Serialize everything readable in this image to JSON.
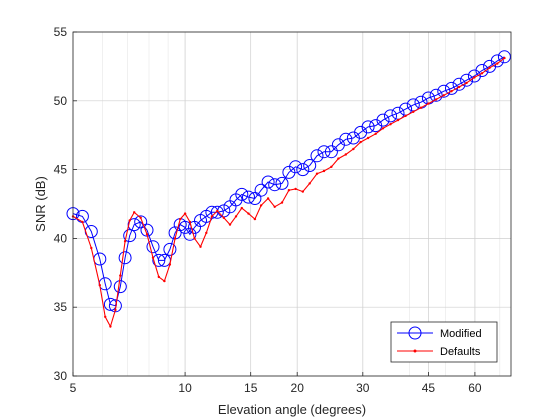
{
  "chart_data": {
    "type": "line",
    "xlabel": "Elevation angle (degrees)",
    "ylabel": "SNR (dB)",
    "x_scale": "log",
    "xlim": [
      5,
      75
    ],
    "ylim": [
      30,
      55
    ],
    "x_ticks": [
      5,
      10,
      15,
      20,
      30,
      45,
      60
    ],
    "y_ticks": [
      30,
      35,
      40,
      45,
      50,
      55
    ],
    "grid": true,
    "legend_position": "bottom-right",
    "series": [
      {
        "name": "Modified",
        "color": "#0000ff",
        "marker": "circle",
        "x": [
          5.0,
          5.3,
          5.6,
          5.9,
          6.1,
          6.3,
          6.5,
          6.7,
          6.9,
          7.1,
          7.3,
          7.6,
          7.9,
          8.2,
          8.5,
          8.8,
          9.1,
          9.4,
          9.7,
          10.0,
          10.3,
          10.6,
          11.0,
          11.4,
          11.8,
          12.2,
          12.7,
          13.2,
          13.7,
          14.2,
          14.8,
          15.4,
          16.0,
          16.7,
          17.4,
          18.2,
          19.0,
          19.8,
          20.7,
          21.6,
          22.6,
          23.6,
          24.7,
          25.8,
          27.0,
          28.3,
          29.6,
          31.0,
          32.5,
          34.0,
          35.6,
          37.3,
          39.1,
          41.0,
          43.0,
          45.0,
          47.2,
          49.5,
          51.9,
          54.4,
          57.0,
          59.8,
          62.7,
          65.7,
          68.9,
          72.0
        ],
        "y": [
          41.8,
          41.6,
          40.5,
          38.5,
          36.7,
          35.2,
          35.1,
          36.5,
          38.6,
          40.2,
          41.0,
          41.2,
          40.6,
          39.4,
          38.4,
          38.4,
          39.2,
          40.4,
          41.0,
          40.8,
          40.3,
          40.8,
          41.3,
          41.6,
          41.9,
          41.9,
          42.0,
          42.3,
          42.8,
          43.2,
          43.0,
          42.9,
          43.5,
          44.1,
          43.9,
          44.0,
          44.8,
          45.2,
          45.0,
          45.3,
          46.0,
          46.3,
          46.3,
          46.8,
          47.2,
          47.3,
          47.7,
          48.1,
          48.2,
          48.6,
          48.9,
          49.1,
          49.4,
          49.7,
          49.9,
          50.2,
          50.4,
          50.7,
          50.9,
          51.2,
          51.5,
          51.8,
          52.2,
          52.5,
          52.9,
          53.2
        ]
      },
      {
        "name": "Defaults",
        "color": "#ff0000",
        "marker": "dot",
        "x": [
          5.0,
          5.3,
          5.6,
          5.9,
          6.1,
          6.3,
          6.5,
          6.7,
          6.9,
          7.1,
          7.3,
          7.6,
          7.9,
          8.2,
          8.5,
          8.8,
          9.1,
          9.4,
          9.7,
          10.0,
          10.3,
          10.6,
          11.0,
          11.4,
          11.8,
          12.2,
          12.7,
          13.2,
          13.7,
          14.2,
          14.8,
          15.4,
          16.0,
          16.7,
          17.4,
          18.2,
          19.0,
          19.8,
          20.7,
          21.6,
          22.6,
          23.6,
          24.7,
          25.8,
          27.0,
          28.3,
          29.6,
          31.0,
          32.5,
          34.0,
          35.6,
          37.3,
          39.1,
          41.0,
          43.0,
          45.0,
          47.2,
          49.5,
          51.9,
          54.4,
          57.0,
          59.8,
          62.7,
          65.7,
          68.9,
          72.0
        ],
        "y": [
          41.6,
          41.2,
          39.3,
          36.6,
          34.3,
          33.6,
          34.8,
          37.3,
          39.8,
          41.3,
          41.9,
          41.5,
          40.3,
          38.6,
          37.2,
          36.9,
          38.1,
          40.0,
          41.4,
          41.8,
          41.2,
          40.0,
          39.4,
          40.4,
          41.6,
          42.0,
          41.5,
          41.0,
          41.6,
          42.2,
          41.8,
          41.4,
          42.4,
          42.9,
          42.3,
          42.6,
          43.5,
          43.6,
          43.4,
          44.0,
          44.7,
          44.9,
          45.2,
          45.8,
          46.1,
          46.5,
          47.0,
          47.3,
          47.6,
          48.0,
          48.3,
          48.6,
          48.9,
          49.2,
          49.5,
          49.8,
          50.1,
          50.4,
          50.7,
          51.0,
          51.3,
          51.7,
          52.0,
          52.4,
          52.7,
          53.1
        ]
      }
    ]
  }
}
